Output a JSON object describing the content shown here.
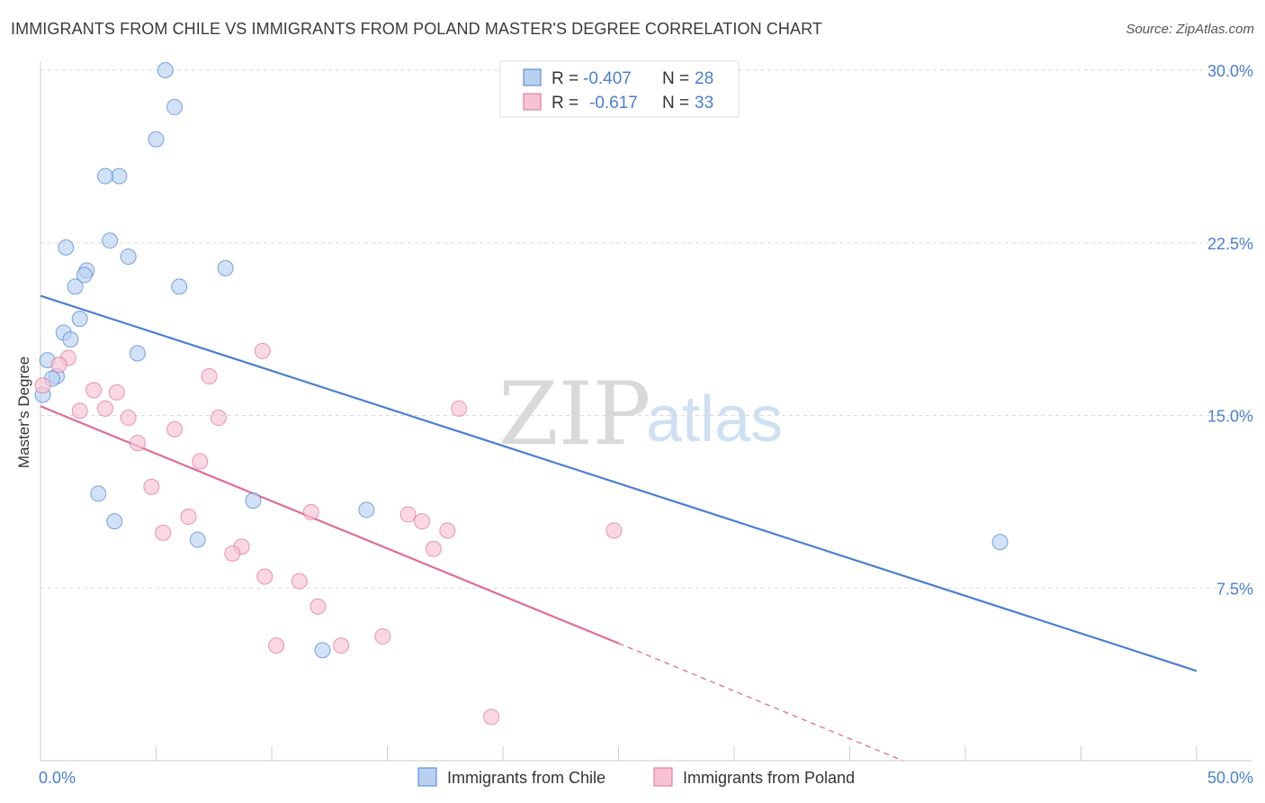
{
  "title": "IMMIGRANTS FROM CHILE VS IMMIGRANTS FROM POLAND MASTER'S DEGREE CORRELATION CHART",
  "source": "Source: ZipAtlas.com",
  "watermark": {
    "zip": "ZIP",
    "atlas": "atlas"
  },
  "chart_data": {
    "type": "scatter",
    "ylabel": "Master's Degree",
    "xlim": [
      0,
      50
    ],
    "ylim": [
      0,
      31
    ],
    "x_tick_labels": [
      "0.0%",
      "50.0%"
    ],
    "y_ticks": [
      7.5,
      15.0,
      22.5,
      30.0
    ],
    "y_tick_labels": [
      "7.5%",
      "15.0%",
      "22.5%",
      "30.0%"
    ],
    "stats": [
      {
        "r_label": "R =",
        "r_value": "-0.407",
        "n_label": "N =",
        "n_value": "28"
      },
      {
        "r_label": "R =",
        "r_value": "-0.617",
        "n_label": "N =",
        "n_value": "33"
      }
    ],
    "series": [
      {
        "name": "Immigrants from Chile",
        "color": "#4a7fd4",
        "fill": "#b9d1f1",
        "trend": {
          "x": [
            0,
            50
          ],
          "y": [
            20.2,
            3.9
          ],
          "dashed_to": null
        },
        "points": [
          [
            5.4,
            30.0
          ],
          [
            5.8,
            28.4
          ],
          [
            5.0,
            27.0
          ],
          [
            3.4,
            25.4
          ],
          [
            2.8,
            25.4
          ],
          [
            3.0,
            22.6
          ],
          [
            1.1,
            22.3
          ],
          [
            3.8,
            21.9
          ],
          [
            8.0,
            21.4
          ],
          [
            2.0,
            21.3
          ],
          [
            1.9,
            21.1
          ],
          [
            1.5,
            20.6
          ],
          [
            6.0,
            20.6
          ],
          [
            1.7,
            19.2
          ],
          [
            1.0,
            18.6
          ],
          [
            1.3,
            18.3
          ],
          [
            4.2,
            17.7
          ],
          [
            0.3,
            17.4
          ],
          [
            0.7,
            16.7
          ],
          [
            0.5,
            16.6
          ],
          [
            0.1,
            15.9
          ],
          [
            2.5,
            11.6
          ],
          [
            9.2,
            11.3
          ],
          [
            14.1,
            10.9
          ],
          [
            3.2,
            10.4
          ],
          [
            6.8,
            9.6
          ],
          [
            41.5,
            9.5
          ],
          [
            12.2,
            4.8
          ]
        ]
      },
      {
        "name": "Immigrants from Poland",
        "color": "#e06c96",
        "fill": "#f7c3d4",
        "trend": {
          "x": [
            0,
            25
          ],
          "y": [
            15.4,
            5.1
          ],
          "dashed_to": [
            37.3,
            0
          ]
        },
        "points": [
          [
            0.1,
            16.3
          ],
          [
            1.2,
            17.5
          ],
          [
            0.8,
            17.2
          ],
          [
            9.6,
            17.8
          ],
          [
            7.3,
            16.7
          ],
          [
            2.3,
            16.1
          ],
          [
            3.3,
            16.0
          ],
          [
            1.7,
            15.2
          ],
          [
            2.8,
            15.3
          ],
          [
            18.1,
            15.3
          ],
          [
            3.8,
            14.9
          ],
          [
            7.7,
            14.9
          ],
          [
            5.8,
            14.4
          ],
          [
            4.2,
            13.8
          ],
          [
            6.9,
            13.0
          ],
          [
            4.8,
            11.9
          ],
          [
            11.7,
            10.8
          ],
          [
            15.9,
            10.7
          ],
          [
            6.4,
            10.6
          ],
          [
            16.5,
            10.4
          ],
          [
            17.6,
            10.0
          ],
          [
            24.8,
            10.0
          ],
          [
            5.3,
            9.9
          ],
          [
            8.7,
            9.3
          ],
          [
            8.3,
            9.0
          ],
          [
            17.0,
            9.2
          ],
          [
            9.7,
            8.0
          ],
          [
            11.2,
            7.8
          ],
          [
            12.0,
            6.7
          ],
          [
            14.8,
            5.4
          ],
          [
            10.2,
            5.0
          ],
          [
            13.0,
            5.0
          ],
          [
            19.5,
            1.9
          ]
        ]
      }
    ]
  }
}
